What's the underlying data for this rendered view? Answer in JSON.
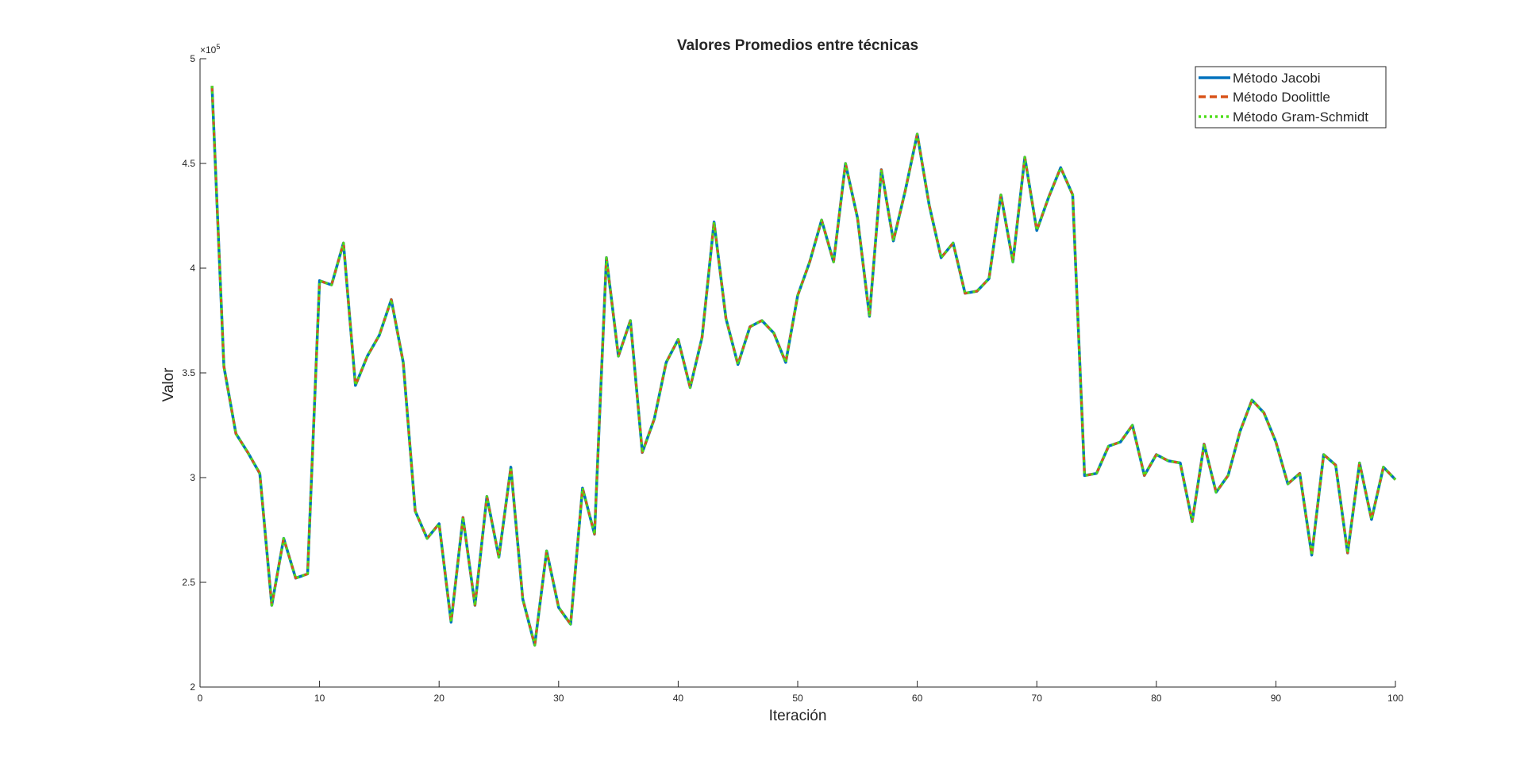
{
  "chart_data": {
    "type": "line",
    "title": "Valores Promedios entre técnicas",
    "xlabel": "Iteración",
    "ylabel": "Valor",
    "xlim": [
      0,
      100
    ],
    "ylim": [
      2,
      5
    ],
    "y_exponent_label": "× 10^5",
    "xticks": [
      "0",
      "10",
      "20",
      "30",
      "40",
      "50",
      "60",
      "70",
      "80",
      "90",
      "100"
    ],
    "yticks": [
      "2",
      "2.5",
      "3",
      "3.5",
      "4",
      "4.5",
      "5"
    ],
    "grid": false,
    "legend_position": "top-right",
    "x": [
      1,
      2,
      3,
      4,
      5,
      6,
      7,
      8,
      9,
      10,
      11,
      12,
      13,
      14,
      15,
      16,
      17,
      18,
      19,
      20,
      21,
      22,
      23,
      24,
      25,
      26,
      27,
      28,
      29,
      30,
      31,
      32,
      33,
      34,
      35,
      36,
      37,
      38,
      39,
      40,
      41,
      42,
      43,
      44,
      45,
      46,
      47,
      48,
      49,
      50,
      51,
      52,
      53,
      54,
      55,
      56,
      57,
      58,
      59,
      60,
      61,
      62,
      63,
      64,
      65,
      66,
      67,
      68,
      69,
      70,
      71,
      72,
      73,
      74,
      75,
      76,
      77,
      78,
      79,
      80,
      81,
      82,
      83,
      84,
      85,
      86,
      87,
      88,
      89,
      90,
      91,
      92,
      93,
      94,
      95,
      96,
      97,
      98,
      99,
      100
    ],
    "values": [
      4.87,
      3.53,
      3.21,
      3.12,
      3.02,
      2.39,
      2.71,
      2.52,
      2.54,
      3.94,
      3.92,
      4.12,
      3.44,
      3.58,
      3.68,
      3.85,
      3.55,
      2.84,
      2.71,
      2.78,
      2.31,
      2.81,
      2.39,
      2.91,
      2.62,
      3.05,
      2.42,
      2.2,
      2.65,
      2.38,
      2.3,
      2.95,
      2.73,
      4.05,
      3.58,
      3.75,
      3.12,
      3.28,
      3.55,
      3.66,
      3.43,
      3.67,
      4.22,
      3.76,
      3.54,
      3.72,
      3.75,
      3.69,
      3.55,
      3.87,
      4.03,
      4.23,
      4.03,
      4.5,
      4.24,
      3.77,
      4.47,
      4.13,
      4.37,
      4.64,
      4.3,
      4.05,
      4.12,
      3.88,
      3.89,
      3.95,
      4.35,
      4.03,
      4.53,
      4.18,
      4.34,
      4.48,
      4.35,
      3.01,
      3.02,
      3.15,
      3.17,
      3.25,
      3.01,
      3.11,
      3.08,
      3.07,
      2.79,
      3.16,
      2.93,
      3.01,
      3.22,
      3.37,
      3.31,
      3.17,
      2.97,
      3.02,
      2.63,
      3.11,
      3.06,
      2.64,
      3.07,
      2.8,
      3.05,
      2.99
    ],
    "series": [
      {
        "name": "Método Jacobi",
        "color": "#0072BD",
        "style": "solid"
      },
      {
        "name": "Método Doolittle",
        "color": "#D95319",
        "style": "dashed"
      },
      {
        "name": "Método Gram-Schmidt",
        "color": "#4DDD19",
        "style": "dotted"
      }
    ]
  }
}
